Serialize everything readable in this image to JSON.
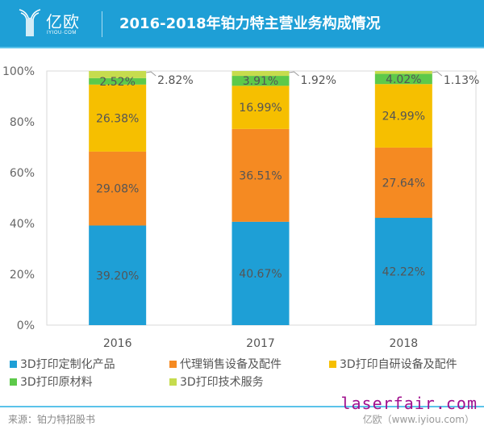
{
  "header": {
    "logo_text": "亿欧",
    "logo_subtext": "IYIOU·COM",
    "title": "2016-2018年铂力特主营业务构成情况"
  },
  "footer": {
    "source": "来源：铂力特招股书",
    "credit": "亿欧（www.iyiou.com）",
    "watermark": "laserfair.com"
  },
  "chart_data": {
    "type": "bar",
    "stacked": true,
    "title": "2016-2018年铂力特主营业务构成情况",
    "xlabel": "",
    "ylabel": "",
    "categories": [
      "2016",
      "2017",
      "2018"
    ],
    "ylim": [
      0,
      100
    ],
    "yticks": [
      "0%",
      "20%",
      "40%",
      "60%",
      "80%",
      "100%"
    ],
    "ytick_values": [
      0,
      20,
      40,
      60,
      80,
      100
    ],
    "grid": false,
    "legend_position": "bottom",
    "series": [
      {
        "name": "3D打印定制化产品",
        "color": "#1e9fd6",
        "values": [
          39.2,
          40.67,
          42.22
        ],
        "labels": [
          "39.20%",
          "40.67%",
          "42.22%"
        ]
      },
      {
        "name": "代理销售设备及配件",
        "color": "#f58a22",
        "values": [
          29.08,
          36.51,
          27.64
        ],
        "labels": [
          "29.08%",
          "36.51%",
          "27.64%"
        ]
      },
      {
        "name": "3D打印自研设备及配件",
        "color": "#f6bf00",
        "values": [
          26.38,
          16.99,
          24.99
        ],
        "labels": [
          "26.38%",
          "16.99%",
          "24.99%"
        ]
      },
      {
        "name": "3D打印原材料",
        "color": "#5dc94a",
        "values": [
          2.52,
          3.91,
          4.02
        ],
        "labels": [
          "2.52%",
          "3.91%",
          "4.02%"
        ]
      },
      {
        "name": "3D打印技术服务",
        "color": "#c6dc4e",
        "values": [
          2.82,
          1.92,
          1.13
        ],
        "labels": [
          "2.82%",
          "1.92%",
          "1.13%"
        ],
        "label_outside": true
      }
    ]
  }
}
